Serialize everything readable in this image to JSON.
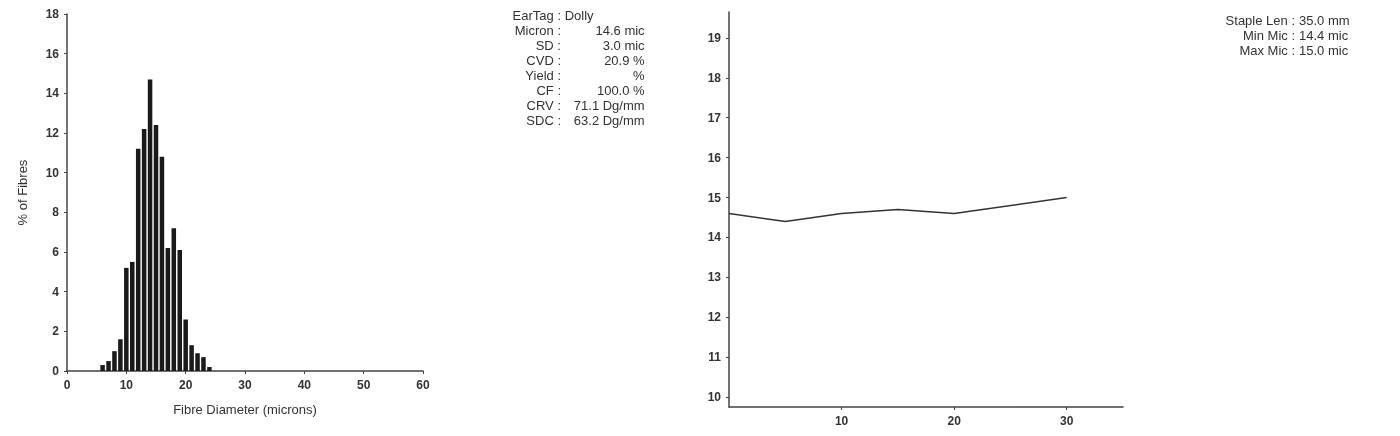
{
  "chart_data": [
    {
      "type": "histogram",
      "xlabel": "Fibre Diameter (microns)",
      "ylabel": "% of Fibres",
      "color": "#1a1a1a",
      "bins": [
        5.5,
        6.5,
        7.5,
        8.5,
        9.5,
        10.5,
        11.5,
        12.5,
        13.5,
        14.5,
        15.5,
        16.5,
        17.5,
        18.5,
        19.5,
        20.5,
        21.5,
        22.5,
        23.5,
        24.5
      ],
      "values": [
        0.3,
        0.5,
        1.0,
        1.6,
        5.2,
        5.5,
        11.2,
        12.2,
        14.7,
        12.4,
        10.8,
        6.2,
        7.2,
        6.1,
        2.6,
        1.3,
        0.9,
        0.7,
        0.2
      ],
      "xlim": [
        0,
        60
      ],
      "xticks": [
        0,
        10,
        20,
        30,
        40,
        50,
        60
      ],
      "ylim": [
        0,
        18
      ],
      "yticks": [
        0,
        2,
        4,
        6,
        8,
        10,
        12,
        14,
        16,
        18
      ],
      "grid": false
    },
    {
      "type": "other",
      "annotations": [
        "EarTag : Dolly",
        "Micron :   14.6 mic",
        "SD :   3.0 mic",
        "CVD :  20.9 %",
        "Yield :  %",
        "CF : 100.0 %",
        "CRV :  71.1 Dg/mm",
        "SDC :  63.2 Dg/mm"
      ]
    },
    {
      "type": "line",
      "x": [
        0,
        5,
        10,
        15,
        20,
        30
      ],
      "values": [
        14.6,
        14.4,
        14.6,
        14.7,
        14.6,
        15.0
      ],
      "color": "#333333",
      "marker": "none",
      "xlim": [
        0,
        35
      ],
      "xticks": [
        10,
        20,
        30
      ],
      "ylim": [
        9.75,
        19.65
      ],
      "yticks": [
        10,
        11,
        12,
        13,
        14,
        15,
        16,
        17,
        18,
        19
      ],
      "grid": false,
      "annotations": [
        "Staple Len :   35.0 mm",
        "Min Mic :   14.4 mic",
        "Max Mic :   15.0 mic"
      ]
    }
  ]
}
